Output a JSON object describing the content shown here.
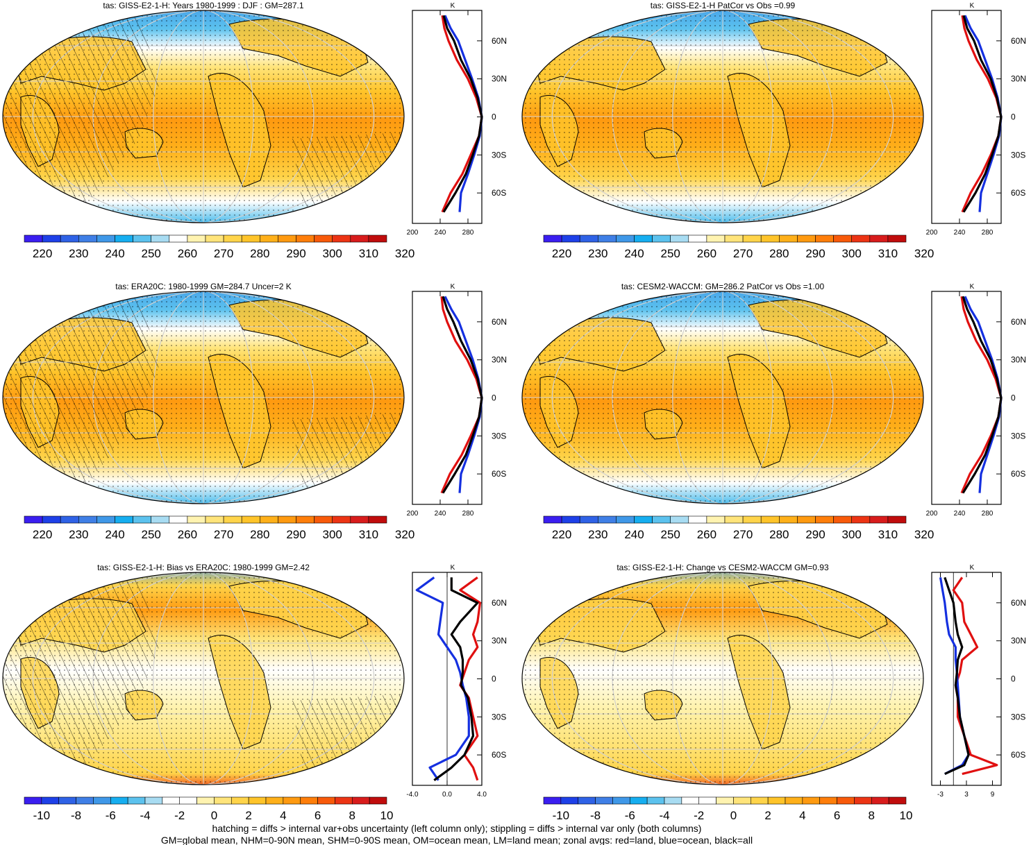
{
  "palettes": {
    "abs": [
      "#3a1ef0",
      "#1e40e8",
      "#2f62e6",
      "#3f7fe6",
      "#3f98e8",
      "#16aef0",
      "#5cc2ee",
      "#a8dcf2",
      "#ffffff",
      "#fff3b0",
      "#ffe47a",
      "#ffd44a",
      "#ffc42a",
      "#ffb01a",
      "#ff9a10",
      "#ff7e0a",
      "#f85a0a",
      "#ec3414",
      "#d81c1c",
      "#c00c0c"
    ],
    "diff": [
      "#3a1ef0",
      "#1e40e8",
      "#2f62e6",
      "#3f7fe6",
      "#3f98e8",
      "#16aef0",
      "#5cc2ee",
      "#a8dcf2",
      "#ffffff",
      "#ffffff",
      "#fff3b0",
      "#ffe47a",
      "#ffd44a",
      "#ffc42a",
      "#ffb01a",
      "#ff9a10",
      "#ff7e0a",
      "#f85a0a",
      "#ec3414",
      "#d81c1c",
      "#c00c0c"
    ]
  },
  "chart_data": [
    {
      "type": "heatmap",
      "title": "tas: GISS-E2-1-H: Years 1980-1999 : DJF : GM=287.1",
      "colorbar_ticks": [
        "220",
        "230",
        "240",
        "250",
        "260",
        "270",
        "280",
        "290",
        "300",
        "310",
        "320"
      ],
      "hatching": true,
      "stippling": true,
      "side_profile": {
        "type": "line",
        "unit": "K",
        "x_ticks": [
          "200",
          "240",
          "280"
        ],
        "xlim": [
          200,
          300
        ],
        "y_ticks": [
          "60N",
          "30N",
          "0",
          "30S",
          "60S"
        ],
        "series": [
          {
            "color": "#e01010",
            "lat": [
              80,
              70,
              60,
              45,
              30,
              15,
              0,
              -15,
              -30,
              -45,
              -60,
              -75
            ],
            "values": [
              243,
              246,
              252,
              264,
              280,
              292,
              300,
              296,
              284,
              272,
              255,
              243
            ]
          },
          {
            "color": "#1530e0",
            "lat": [
              80,
              70,
              60,
              45,
              30,
              15,
              0,
              -15,
              -30,
              -45,
              -60,
              -75
            ],
            "values": [
              247,
              255,
              266,
              276,
              286,
              295,
              300,
              297,
              289,
              280,
              270,
              268
            ]
          },
          {
            "color": "#000000",
            "lat": [
              80,
              70,
              60,
              45,
              30,
              15,
              0,
              -15,
              -30,
              -45,
              -60,
              -75
            ],
            "values": [
              245,
              250,
              260,
              270,
              284,
              294,
              300,
              296,
              287,
              277,
              262,
              245
            ]
          }
        ]
      }
    },
    {
      "type": "heatmap",
      "title": "tas: GISS-E2-1-H PatCor vs Obs =0.99",
      "colorbar_ticks": [
        "220",
        "230",
        "240",
        "250",
        "260",
        "270",
        "280",
        "290",
        "300",
        "310",
        "320"
      ],
      "hatching": false,
      "stippling": true,
      "side_profile": {
        "type": "line",
        "unit": "K",
        "x_ticks": [
          "200",
          "240",
          "280"
        ],
        "xlim": [
          200,
          300
        ],
        "y_ticks": [
          "60N",
          "30N",
          "0",
          "30S",
          "60S"
        ],
        "series": [
          {
            "color": "#e01010",
            "lat": [
              80,
              70,
              60,
              45,
              30,
              15,
              0,
              -15,
              -30,
              -45,
              -60,
              -75
            ],
            "values": [
              244,
              247,
              253,
              265,
              281,
              293,
              300,
              296,
              285,
              272,
              256,
              244
            ]
          },
          {
            "color": "#1530e0",
            "lat": [
              80,
              70,
              60,
              45,
              30,
              15,
              0,
              -15,
              -30,
              -45,
              -60,
              -75
            ],
            "values": [
              248,
              256,
              267,
              277,
              287,
              295,
              300,
              297,
              289,
              280,
              271,
              269
            ]
          },
          {
            "color": "#000000",
            "lat": [
              80,
              70,
              60,
              45,
              30,
              15,
              0,
              -15,
              -30,
              -45,
              -60,
              -75
            ],
            "values": [
              246,
              251,
              261,
              271,
              285,
              294,
              300,
              296,
              287,
              277,
              263,
              246
            ]
          }
        ]
      }
    },
    {
      "type": "heatmap",
      "title": "tas: ERA20C: 1980-1999 GM=284.7 Uncer=2 K",
      "colorbar_ticks": [
        "220",
        "230",
        "240",
        "250",
        "260",
        "270",
        "280",
        "290",
        "300",
        "310",
        "320"
      ],
      "hatching": true,
      "stippling": true,
      "side_profile": {
        "type": "line",
        "unit": "K",
        "x_ticks": [
          "200",
          "240",
          "280"
        ],
        "xlim": [
          200,
          300
        ],
        "y_ticks": [
          "60N",
          "30N",
          "0",
          "30S",
          "60S"
        ],
        "series": [
          {
            "color": "#e01010",
            "lat": [
              80,
              70,
              60,
              45,
              30,
              15,
              0,
              -15,
              -30,
              -45,
              -60,
              -75
            ],
            "values": [
              242,
              244,
              250,
              262,
              279,
              292,
              300,
              296,
              284,
              271,
              254,
              242
            ]
          },
          {
            "color": "#1530e0",
            "lat": [
              80,
              70,
              60,
              45,
              30,
              15,
              0,
              -15,
              -30,
              -45,
              -60,
              -75
            ],
            "values": [
              247,
              256,
              267,
              277,
              287,
              295,
              300,
              297,
              289,
              280,
              270,
              268
            ]
          },
          {
            "color": "#000000",
            "lat": [
              80,
              70,
              60,
              45,
              30,
              15,
              0,
              -15,
              -30,
              -45,
              -60,
              -75
            ],
            "values": [
              244,
              250,
              259,
              270,
              284,
              294,
              300,
              296,
              287,
              277,
              261,
              244
            ]
          }
        ]
      }
    },
    {
      "type": "heatmap",
      "title": "tas: CESM2-WACCM: GM=286.2 PatCor vs Obs =1.00",
      "colorbar_ticks": [
        "220",
        "230",
        "240",
        "250",
        "260",
        "270",
        "280",
        "290",
        "300",
        "310",
        "320"
      ],
      "hatching": false,
      "stippling": true,
      "side_profile": {
        "type": "line",
        "unit": "K",
        "x_ticks": [
          "200",
          "240",
          "280"
        ],
        "xlim": [
          200,
          300
        ],
        "y_ticks": [
          "60N",
          "30N",
          "0",
          "30S",
          "60S"
        ],
        "series": [
          {
            "color": "#e01010",
            "lat": [
              80,
              70,
              60,
              45,
              30,
              15,
              0,
              -15,
              -30,
              -45,
              -60,
              -75
            ],
            "values": [
              243,
              246,
              252,
              264,
              280,
              292,
              300,
              296,
              285,
              272,
              255,
              243
            ]
          },
          {
            "color": "#1530e0",
            "lat": [
              80,
              70,
              60,
              45,
              30,
              15,
              0,
              -15,
              -30,
              -45,
              -60,
              -75
            ],
            "values": [
              248,
              256,
              267,
              277,
              287,
              295,
              300,
              297,
              289,
              280,
              271,
              269
            ]
          },
          {
            "color": "#000000",
            "lat": [
              80,
              70,
              60,
              45,
              30,
              15,
              0,
              -15,
              -30,
              -45,
              -60,
              -75
            ],
            "values": [
              245,
              251,
              260,
              271,
              285,
              294,
              300,
              296,
              287,
              277,
              262,
              245
            ]
          }
        ]
      }
    },
    {
      "type": "heatmap",
      "title": "tas: GISS-E2-1-H: Bias vs ERA20C: 1980-1999 GM=2.42",
      "colorbar_ticks": [
        "-10",
        "-8",
        "-6",
        "-4",
        "-2",
        "0",
        "2",
        "4",
        "6",
        "8",
        "10"
      ],
      "hatching": true,
      "stippling": true,
      "side_profile": {
        "type": "line",
        "unit": "K",
        "x_ticks": [
          "-4.0",
          "0.0",
          "4.0"
        ],
        "xlim": [
          -4,
          4
        ],
        "y_ticks": [
          "60N",
          "30N",
          "0",
          "30S",
          "60S"
        ],
        "series": [
          {
            "color": "#e01010",
            "lat": [
              80,
              70,
              60,
              45,
              35,
              25,
              15,
              5,
              -5,
              -15,
              -30,
              -45,
              -60,
              -70,
              -80
            ],
            "values": [
              3.5,
              1.5,
              3.8,
              3.5,
              3.0,
              3.5,
              2.5,
              2.0,
              1.5,
              2.5,
              3.0,
              3.5,
              2.0,
              3.0,
              3.5
            ]
          },
          {
            "color": "#1530e0",
            "lat": [
              80,
              70,
              60,
              45,
              35,
              25,
              15,
              5,
              -5,
              -15,
              -30,
              -45,
              -60,
              -70,
              -80
            ],
            "values": [
              -1.5,
              -3.5,
              -0.5,
              -0.8,
              -1.0,
              0.0,
              1.0,
              1.5,
              1.8,
              2.2,
              2.5,
              2.5,
              1.0,
              -2.0,
              -1.0
            ]
          },
          {
            "color": "#000000",
            "lat": [
              80,
              70,
              60,
              45,
              35,
              25,
              15,
              5,
              -5,
              -15,
              -30,
              -45,
              -60,
              -70,
              -80
            ],
            "values": [
              0.5,
              0.5,
              3.5,
              1.5,
              0.5,
              1.5,
              1.8,
              1.8,
              1.6,
              2.4,
              2.8,
              3.0,
              2.0,
              0.5,
              -1.5
            ]
          }
        ]
      }
    },
    {
      "type": "heatmap",
      "title": "tas: GISS-E2-1-H: Change vs CESM2-WACCM GM=0.93",
      "colorbar_ticks": [
        "-10",
        "-8",
        "-6",
        "-4",
        "-2",
        "0",
        "2",
        "4",
        "6",
        "8",
        "10"
      ],
      "hatching": false,
      "stippling": true,
      "side_profile": {
        "type": "line",
        "unit": "K",
        "x_ticks": [
          "-3",
          "3",
          "9"
        ],
        "xlim": [
          -5,
          11
        ],
        "y_ticks": [
          "60N",
          "30N",
          "0",
          "30S",
          "60S"
        ],
        "series": [
          {
            "color": "#e01010",
            "lat": [
              80,
              70,
              60,
              45,
              35,
              25,
              15,
              5,
              -5,
              -15,
              -30,
              -45,
              -60,
              -68,
              -75
            ],
            "values": [
              2.0,
              0.0,
              2.0,
              2.5,
              4.0,
              5.5,
              2.0,
              1.5,
              0.5,
              1.0,
              1.0,
              2.5,
              4.0,
              10.0,
              2.0
            ]
          },
          {
            "color": "#1530e0",
            "lat": [
              80,
              70,
              60,
              45,
              35,
              25,
              15,
              5,
              -5,
              -15,
              -30,
              -45,
              -60,
              -68,
              -75
            ],
            "values": [
              -3.0,
              -2.5,
              -2.0,
              -1.5,
              -1.0,
              0.5,
              0.5,
              0.8,
              1.0,
              1.2,
              1.5,
              2.5,
              3.5,
              2.0,
              -2.0
            ]
          },
          {
            "color": "#000000",
            "lat": [
              80,
              70,
              60,
              45,
              35,
              25,
              15,
              5,
              -5,
              -15,
              -30,
              -45,
              -60,
              -68,
              -75
            ],
            "values": [
              -2.0,
              -1.0,
              0.0,
              0.5,
              1.0,
              2.0,
              1.0,
              0.8,
              0.5,
              1.0,
              1.5,
              2.5,
              3.5,
              2.5,
              -2.0
            ]
          }
        ]
      }
    }
  ],
  "footer": {
    "line1": "hatching = diffs > internal var+obs uncertainty (left column only); stippling = diffs > internal var only (both columns)",
    "line2": "GM=global mean, NHM=0-90N mean, SHM=0-90S mean, OM=ocean mean, LM=land mean; zonal avgs: red=land, blue=ocean, black=all"
  }
}
